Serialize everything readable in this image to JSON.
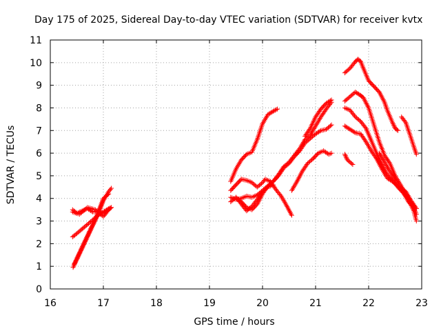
{
  "chart_data": {
    "type": "scatter",
    "title": "Day 175 of 2025, Sidereal Day-to-day VTEC variation (SDTVAR) for receiver kvtx",
    "xlabel": "GPS time / hours",
    "ylabel": "SDTVAR / TECUs",
    "xlim": [
      16,
      23
    ],
    "ylim": [
      0,
      11
    ],
    "xticks": [
      "16",
      "17",
      "18",
      "19",
      "20",
      "21",
      "22",
      "23"
    ],
    "yticks": [
      "0",
      "1",
      "2",
      "3",
      "4",
      "5",
      "6",
      "7",
      "8",
      "9",
      "10",
      "11"
    ],
    "grid": true,
    "marker": "plus",
    "color": "#ff0000",
    "series": [
      {
        "points": [
          [
            16.43,
            0.95
          ],
          [
            16.5,
            1.3
          ],
          [
            16.6,
            1.8
          ],
          [
            16.7,
            2.3
          ],
          [
            16.8,
            2.8
          ],
          [
            16.9,
            3.3
          ],
          [
            17.0,
            3.9
          ],
          [
            17.1,
            4.3
          ],
          [
            17.15,
            4.45
          ]
        ]
      },
      {
        "points": [
          [
            16.45,
            1.1
          ],
          [
            16.55,
            1.6
          ],
          [
            16.65,
            2.1
          ],
          [
            16.75,
            2.6
          ],
          [
            16.85,
            3.1
          ],
          [
            16.92,
            3.5
          ],
          [
            17.0,
            4.0
          ],
          [
            17.1,
            4.2
          ]
        ]
      },
      {
        "points": [
          [
            16.42,
            2.3
          ],
          [
            16.5,
            2.45
          ],
          [
            16.6,
            2.65
          ],
          [
            16.7,
            2.85
          ],
          [
            16.8,
            3.05
          ],
          [
            16.9,
            3.25
          ],
          [
            17.0,
            3.4
          ],
          [
            17.1,
            3.55
          ],
          [
            17.15,
            3.6
          ]
        ]
      },
      {
        "points": [
          [
            16.42,
            3.5
          ],
          [
            16.5,
            3.35
          ],
          [
            16.6,
            3.45
          ],
          [
            16.7,
            3.55
          ],
          [
            16.8,
            3.4
          ],
          [
            16.9,
            3.45
          ],
          [
            17.0,
            3.35
          ],
          [
            17.1,
            3.5
          ],
          [
            17.15,
            3.6
          ]
        ]
      },
      {
        "points": [
          [
            16.42,
            3.4
          ],
          [
            16.55,
            3.3
          ],
          [
            16.7,
            3.6
          ],
          [
            16.85,
            3.5
          ],
          [
            17.0,
            3.2
          ],
          [
            17.1,
            3.5
          ]
        ]
      },
      {
        "points": [
          [
            19.4,
            4.75
          ],
          [
            19.5,
            5.3
          ],
          [
            19.6,
            5.7
          ],
          [
            19.7,
            5.95
          ],
          [
            19.8,
            6.05
          ],
          [
            19.9,
            6.6
          ],
          [
            20.0,
            7.3
          ],
          [
            20.1,
            7.7
          ],
          [
            20.2,
            7.85
          ],
          [
            20.28,
            7.95
          ]
        ]
      },
      {
        "points": [
          [
            19.4,
            4.35
          ],
          [
            19.5,
            4.6
          ],
          [
            19.6,
            4.85
          ],
          [
            19.7,
            4.8
          ],
          [
            19.8,
            4.7
          ],
          [
            19.9,
            4.5
          ],
          [
            20.0,
            4.7
          ],
          [
            20.05,
            4.85
          ],
          [
            20.15,
            4.75
          ],
          [
            20.25,
            4.4
          ],
          [
            20.35,
            4.1
          ],
          [
            20.45,
            3.7
          ],
          [
            20.55,
            3.25
          ]
        ]
      },
      {
        "points": [
          [
            19.4,
            3.85
          ],
          [
            19.5,
            4.05
          ],
          [
            19.6,
            3.85
          ],
          [
            19.7,
            3.6
          ],
          [
            19.8,
            3.5
          ],
          [
            19.9,
            3.75
          ],
          [
            20.0,
            4.2
          ],
          [
            20.1,
            4.55
          ],
          [
            20.2,
            4.75
          ],
          [
            20.3,
            5.0
          ],
          [
            20.4,
            5.35
          ],
          [
            20.5,
            5.55
          ],
          [
            20.6,
            5.85
          ],
          [
            20.7,
            6.1
          ],
          [
            20.8,
            6.45
          ],
          [
            20.9,
            6.65
          ],
          [
            21.0,
            6.85
          ],
          [
            21.1,
            7.0
          ],
          [
            21.2,
            7.05
          ],
          [
            21.3,
            7.25
          ]
        ]
      },
      {
        "points": [
          [
            19.4,
            4.05
          ],
          [
            19.5,
            3.95
          ],
          [
            19.6,
            4.0
          ],
          [
            19.7,
            4.1
          ],
          [
            19.8,
            4.05
          ],
          [
            19.9,
            4.15
          ],
          [
            20.0,
            4.35
          ],
          [
            20.1,
            4.55
          ],
          [
            20.2,
            4.75
          ],
          [
            20.3,
            5.05
          ],
          [
            20.4,
            5.4
          ],
          [
            20.5,
            5.6
          ],
          [
            20.6,
            5.9
          ],
          [
            20.7,
            6.2
          ],
          [
            20.8,
            6.6
          ],
          [
            20.9,
            6.8
          ],
          [
            21.0,
            7.2
          ],
          [
            21.1,
            7.6
          ],
          [
            21.2,
            7.95
          ],
          [
            21.3,
            8.25
          ]
        ]
      },
      {
        "points": [
          [
            19.5,
            4.05
          ],
          [
            19.6,
            3.75
          ],
          [
            19.7,
            3.45
          ],
          [
            19.8,
            3.65
          ],
          [
            19.9,
            3.95
          ],
          [
            20.0,
            4.3
          ],
          [
            20.1,
            4.5
          ],
          [
            20.2,
            4.6
          ]
        ]
      },
      {
        "points": [
          [
            20.55,
            4.35
          ],
          [
            20.65,
            4.75
          ],
          [
            20.75,
            5.2
          ],
          [
            20.85,
            5.55
          ],
          [
            20.95,
            5.75
          ],
          [
            21.05,
            6.0
          ],
          [
            21.15,
            6.1
          ],
          [
            21.25,
            5.95
          ],
          [
            21.3,
            6.0
          ]
        ]
      },
      {
        "points": [
          [
            20.8,
            6.75
          ],
          [
            20.9,
            7.1
          ],
          [
            21.0,
            7.6
          ],
          [
            21.1,
            7.95
          ],
          [
            21.2,
            8.2
          ],
          [
            21.3,
            8.35
          ]
        ]
      },
      {
        "points": [
          [
            21.55,
            9.55
          ],
          [
            21.65,
            9.75
          ],
          [
            21.75,
            10.05
          ],
          [
            21.8,
            10.15
          ],
          [
            21.85,
            10.05
          ],
          [
            21.9,
            9.75
          ],
          [
            22.0,
            9.2
          ],
          [
            22.1,
            8.95
          ],
          [
            22.2,
            8.7
          ],
          [
            22.3,
            8.25
          ],
          [
            22.35,
            7.9
          ],
          [
            22.45,
            7.35
          ],
          [
            22.5,
            7.1
          ],
          [
            22.55,
            7.0
          ]
        ]
      },
      {
        "points": [
          [
            21.55,
            8.3
          ],
          [
            21.65,
            8.5
          ],
          [
            21.75,
            8.7
          ],
          [
            21.85,
            8.55
          ],
          [
            21.9,
            8.45
          ],
          [
            22.0,
            8.0
          ],
          [
            22.1,
            7.25
          ],
          [
            22.2,
            6.5
          ],
          [
            22.3,
            5.9
          ],
          [
            22.4,
            5.55
          ],
          [
            22.5,
            5.0
          ],
          [
            22.6,
            4.6
          ],
          [
            22.7,
            4.2
          ],
          [
            22.8,
            3.85
          ],
          [
            22.9,
            3.55
          ]
        ]
      },
      {
        "points": [
          [
            21.55,
            8.0
          ],
          [
            21.65,
            7.9
          ],
          [
            21.75,
            7.6
          ],
          [
            21.85,
            7.4
          ],
          [
            21.95,
            7.1
          ],
          [
            22.05,
            6.55
          ],
          [
            22.15,
            6.0
          ],
          [
            22.25,
            5.5
          ],
          [
            22.35,
            5.05
          ],
          [
            22.45,
            4.8
          ],
          [
            22.55,
            4.5
          ],
          [
            22.65,
            4.25
          ],
          [
            22.75,
            3.95
          ],
          [
            22.85,
            3.45
          ],
          [
            22.9,
            3.0
          ]
        ]
      },
      {
        "points": [
          [
            21.55,
            7.2
          ],
          [
            21.65,
            7.05
          ],
          [
            21.75,
            6.9
          ],
          [
            21.85,
            6.85
          ],
          [
            21.95,
            6.5
          ],
          [
            22.05,
            6.1
          ],
          [
            22.15,
            5.75
          ],
          [
            22.25,
            5.3
          ],
          [
            22.35,
            4.9
          ],
          [
            22.45,
            4.75
          ],
          [
            22.55,
            4.55
          ],
          [
            22.65,
            4.3
          ],
          [
            22.75,
            3.85
          ],
          [
            22.85,
            3.6
          ],
          [
            22.9,
            3.3
          ]
        ]
      },
      {
        "points": [
          [
            21.55,
            5.95
          ],
          [
            21.6,
            5.7
          ],
          [
            21.7,
            5.5
          ]
        ]
      },
      {
        "points": [
          [
            22.62,
            7.6
          ],
          [
            22.7,
            7.35
          ],
          [
            22.78,
            6.8
          ],
          [
            22.85,
            6.3
          ],
          [
            22.9,
            5.95
          ]
        ]
      },
      {
        "points": [
          [
            22.2,
            6.0
          ],
          [
            22.3,
            5.6
          ],
          [
            22.4,
            5.2
          ],
          [
            22.5,
            4.8
          ],
          [
            22.6,
            4.5
          ],
          [
            22.7,
            4.3
          ],
          [
            22.8,
            3.9
          ],
          [
            22.9,
            3.55
          ]
        ]
      }
    ]
  }
}
